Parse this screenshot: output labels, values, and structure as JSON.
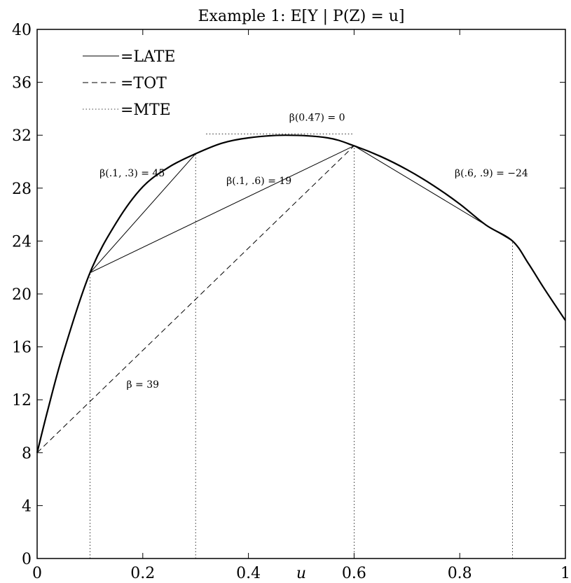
{
  "chart_data": {
    "type": "line",
    "title": "Example 1:  E[Y | P(Z) = u]",
    "xlabel": "u",
    "ylabel": "",
    "xlim": [
      0,
      1
    ],
    "ylim": [
      0,
      40
    ],
    "grid": false,
    "legend_position": "top-left",
    "x_ticks": [
      "0",
      "0.2",
      "0.4",
      "0.6",
      "0.8",
      "1"
    ],
    "y_ticks": [
      "0",
      "4",
      "8",
      "12",
      "16",
      "20",
      "24",
      "28",
      "32",
      "36",
      "40"
    ],
    "legend": [
      {
        "label": "=LATE",
        "style": "solid"
      },
      {
        "label": "=TOT",
        "style": "dashed"
      },
      {
        "label": "=MTE",
        "style": "dotted"
      }
    ],
    "curve": {
      "x": [
        0,
        0.02,
        0.05,
        0.1,
        0.15,
        0.2,
        0.25,
        0.3,
        0.35,
        0.4,
        0.47,
        0.55,
        0.6,
        0.65,
        0.7,
        0.75,
        0.8,
        0.85,
        0.9,
        0.93,
        0.96,
        1.0
      ],
      "y": [
        8.0,
        11.2,
        15.6,
        21.6,
        25.4,
        28.1,
        29.6,
        30.6,
        31.4,
        31.8,
        32.0,
        31.8,
        31.2,
        30.4,
        29.4,
        28.2,
        26.8,
        25.2,
        24.0,
        22.3,
        20.4,
        18.0
      ]
    },
    "late_segments": [
      {
        "x": [
          0.1,
          0.3
        ],
        "y": [
          21.6,
          30.6
        ]
      },
      {
        "x": [
          0.1,
          0.6
        ],
        "y": [
          21.6,
          31.2
        ]
      },
      {
        "x": [
          0.6,
          0.9
        ],
        "y": [
          31.2,
          24.0
        ]
      }
    ],
    "tot_segment": {
      "x": [
        0,
        0.6
      ],
      "y": [
        8.0,
        31.2
      ]
    },
    "mte_vertical_x": [
      0.1,
      0.3,
      0.6,
      0.9
    ],
    "mte_tangent": {
      "x": [
        0.32,
        0.6
      ],
      "y": [
        32.1,
        32.1
      ]
    },
    "annotations": [
      {
        "text": "β(.1, .3) = 45",
        "x": 0.18,
        "y": 28.9
      },
      {
        "text": "β(.1, .6) = 19",
        "x": 0.42,
        "y": 28.3
      },
      {
        "text": "β(.6, .9) = −24",
        "x": 0.86,
        "y": 28.9
      },
      {
        "text": "β(0.47) = 0",
        "x": 0.53,
        "y": 33.1
      },
      {
        "text": "β = 39",
        "x": 0.2,
        "y": 12.9
      }
    ]
  }
}
